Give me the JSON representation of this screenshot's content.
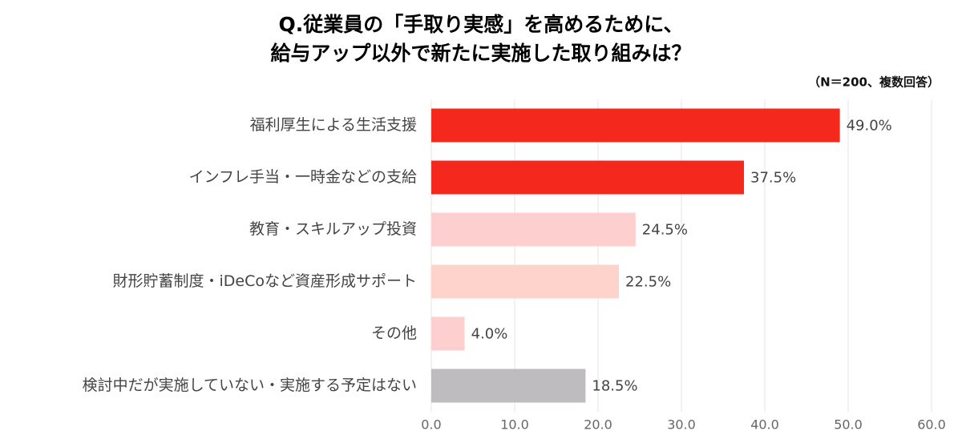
{
  "chart_data": {
    "type": "bar",
    "orientation": "horizontal",
    "title": [
      "Q.従業員の「手取り実感」を高めるために、",
      "給与アップ以外で新たに実施した取り組みは？"
    ],
    "note": "（N＝200、複数回答）",
    "categories": [
      "福利厚生による生活支援",
      "インフレ手当・一時金などの支給",
      "教育・スキルアップ投資",
      "財形貯蓄制度・iDeCoなど資産形成サポート",
      "その他",
      "検討中だが実施していない・実施する予定はない"
    ],
    "values": [
      49.0,
      37.5,
      24.5,
      22.5,
      4.0,
      18.5
    ],
    "value_labels": [
      "49.0%",
      "37.5%",
      "24.5%",
      "22.5%",
      "4.0%",
      "18.5%"
    ],
    "colors": [
      "#f5281e",
      "#f5281e",
      "#fdd0cf",
      "#fdd3cc",
      "#fdd0cf",
      "#bebcbe"
    ],
    "xlim": [
      0,
      60
    ],
    "xticks": [
      {
        "value": 0,
        "label": "0.0"
      },
      {
        "value": 10,
        "label": "10.0"
      },
      {
        "value": 20,
        "label": "20.0"
      },
      {
        "value": 30,
        "label": "30.0"
      },
      {
        "value": 40,
        "label": "40.0"
      },
      {
        "value": 50,
        "label": "50.0"
      },
      {
        "value": 60,
        "label": "60.0"
      }
    ],
    "grid": true
  }
}
